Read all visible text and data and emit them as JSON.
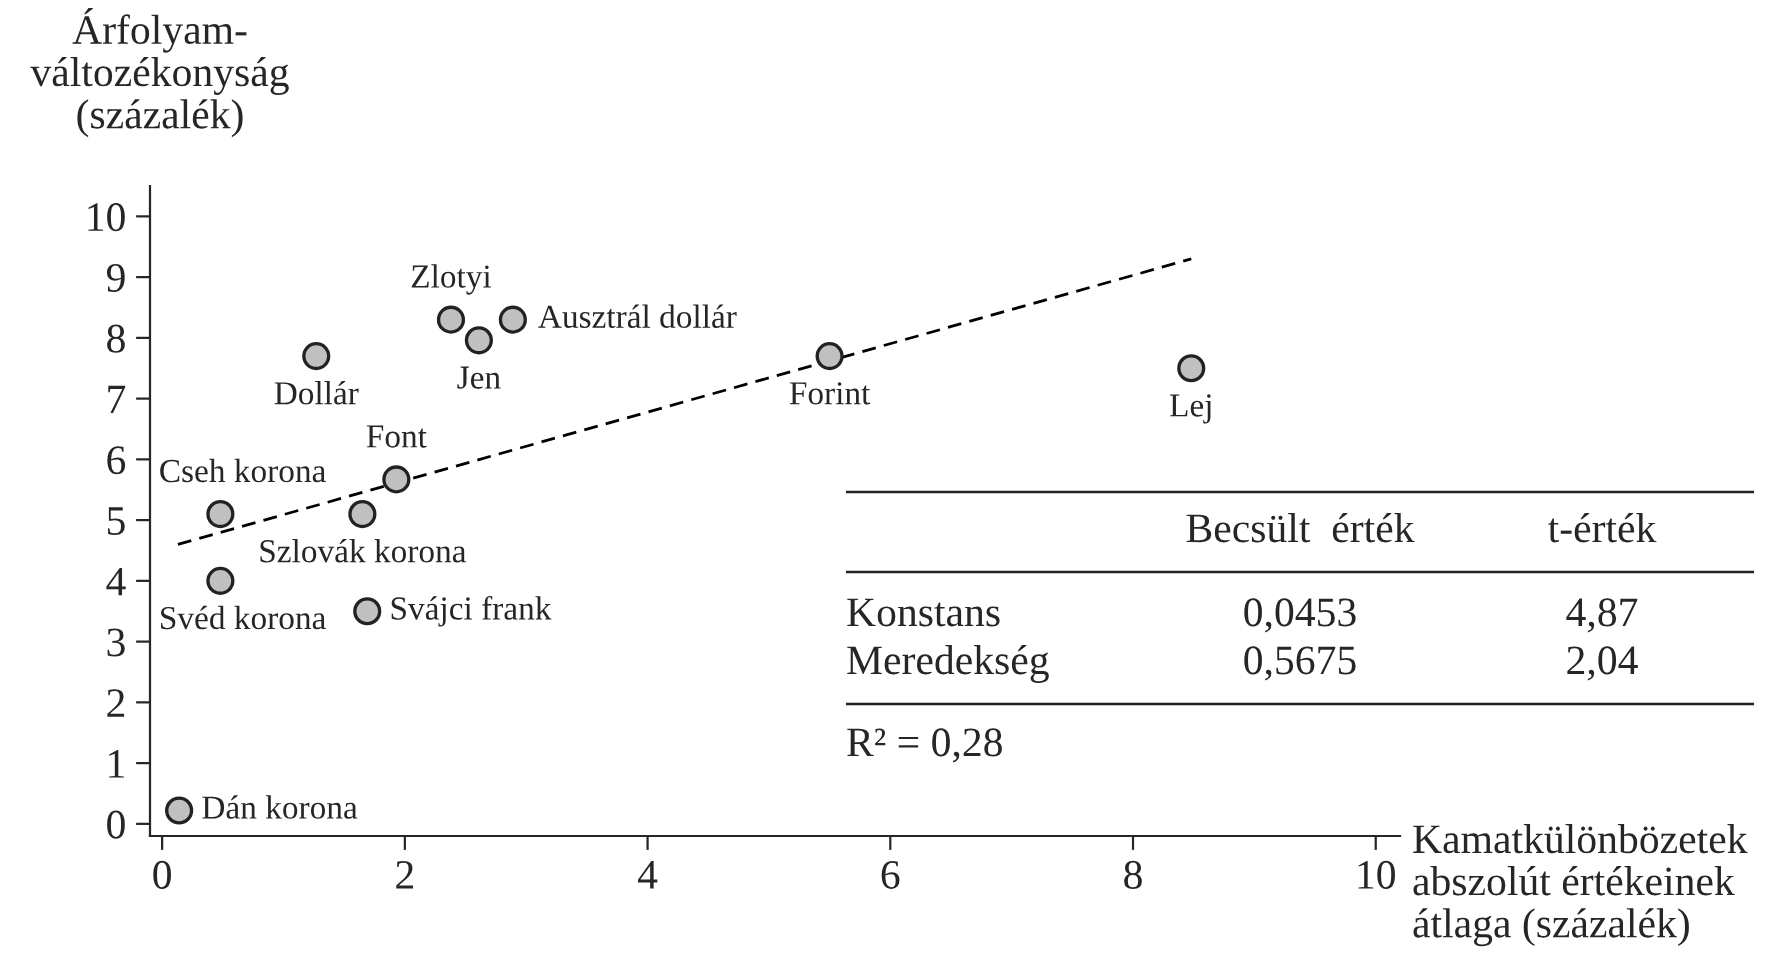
{
  "chart_data": {
    "type": "scatter",
    "xlabel": "Kamatkülönbözetek\nabszolút értékeinek\nátlaga (százalék)",
    "ylabel": "Árfolyam-\nváltozékonyság\n(százalék)",
    "xlim": [
      -0.1,
      10.2
    ],
    "ylim": [
      -0.2,
      10.5
    ],
    "xticks": [
      0,
      2,
      4,
      6,
      8,
      10
    ],
    "yticks": [
      0,
      1,
      2,
      3,
      4,
      5,
      6,
      7,
      8,
      9,
      10
    ],
    "grid": false,
    "legend": false,
    "marker": "circle",
    "series": [
      {
        "color": "#c0c0c0",
        "x": [
          2.38,
          2.89,
          2.61,
          1.27,
          5.5,
          8.48,
          1.93,
          0.48,
          1.65,
          0.48,
          1.69,
          0.14
        ],
        "values": [
          8.3,
          8.3,
          7.96,
          7.7,
          7.7,
          7.5,
          5.67,
          5.1,
          5.1,
          4.0,
          3.5,
          0.22
        ]
      },
      {
        "type": "line",
        "color": "#000000",
        "line_style": "dashed",
        "marker": "none",
        "x": [
          0.13,
          8.48
        ],
        "values": [
          4.6,
          9.3
        ]
      }
    ],
    "annotations": [
      {
        "text": "Zlotyi",
        "x": 2.38,
        "y": 8.3
      },
      {
        "text": "Ausztrál dollár",
        "x": 2.89,
        "y": 8.3
      },
      {
        "text": "Jen",
        "x": 2.61,
        "y": 7.96
      },
      {
        "text": "Dollár",
        "x": 1.27,
        "y": 7.7
      },
      {
        "text": "Forint",
        "x": 5.5,
        "y": 7.7
      },
      {
        "text": "Lej",
        "x": 8.48,
        "y": 7.5
      },
      {
        "text": "Font",
        "x": 1.93,
        "y": 5.67
      },
      {
        "text": "Cseh korona",
        "x": 0.48,
        "y": 5.1
      },
      {
        "text": "Szlovák korona",
        "x": 1.65,
        "y": 5.1
      },
      {
        "text": "Svéd korona",
        "x": 0.48,
        "y": 4.0
      },
      {
        "text": "Svájci frank",
        "x": 1.69,
        "y": 3.5
      },
      {
        "text": "Dán korona",
        "x": 0.14,
        "y": 0.22
      },
      "Becsült  érték",
      "t-érték",
      "Konstans",
      "0,0453",
      "4,87",
      "Meredekség",
      "0,5675",
      "2,04",
      "R² = 0,28"
    ]
  }
}
